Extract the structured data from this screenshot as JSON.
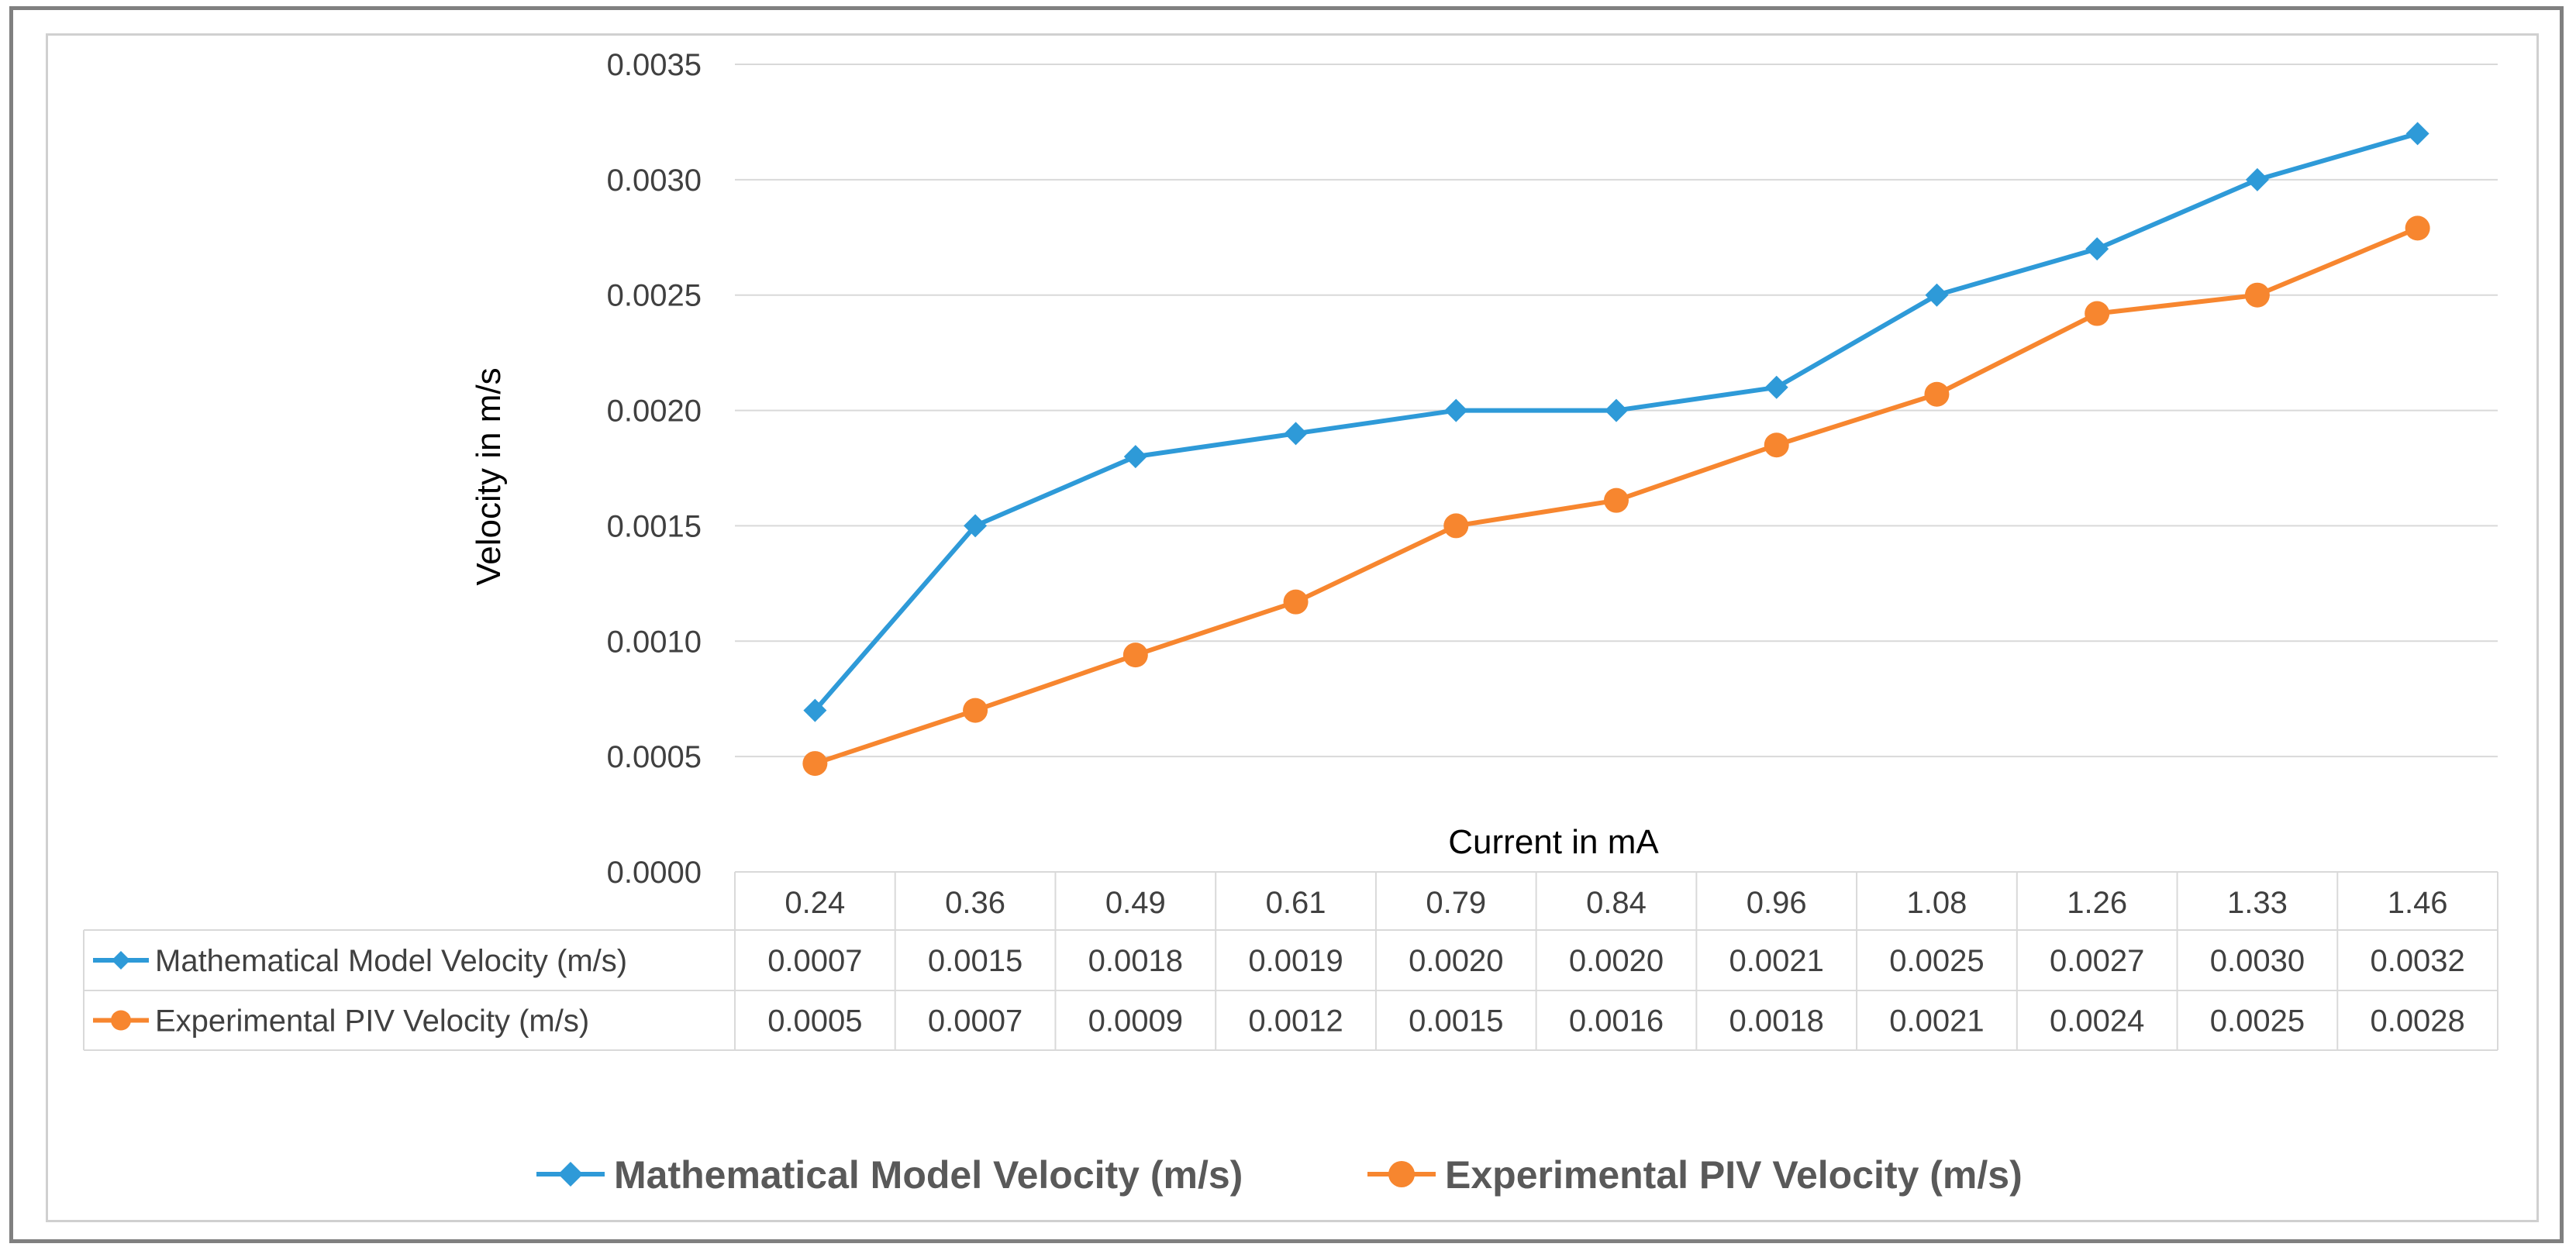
{
  "chart_data": {
    "type": "line",
    "ylabel": "Velocity in m/s",
    "xlabel": "Current in mA",
    "ylim": [
      0,
      0.0035
    ],
    "y_ticks": [
      "0.0000",
      "0.0005",
      "0.0010",
      "0.0015",
      "0.0020",
      "0.0025",
      "0.0030",
      "0.0035"
    ],
    "grid": "horizontal",
    "legend_position": "bottom",
    "data_table": true,
    "categories": [
      "0.24",
      "0.36",
      "0.49",
      "0.61",
      "0.79",
      "0.84",
      "0.96",
      "1.08",
      "1.26",
      "1.33",
      "1.46"
    ],
    "series": [
      {
        "name": "Mathematical Model Velocity (m/s)",
        "color": "#2e9ad8",
        "marker": "diamond",
        "values": [
          0.0007,
          0.0015,
          0.0018,
          0.0019,
          0.002,
          0.002,
          0.0021,
          0.0025,
          0.0027,
          0.003,
          0.0032
        ],
        "table_values": [
          "0.0007",
          "0.0015",
          "0.0018",
          "0.0019",
          "0.0020",
          "0.0020",
          "0.0021",
          "0.0025",
          "0.0027",
          "0.0030",
          "0.0032"
        ]
      },
      {
        "name": "Experimental PIV Velocity (m/s)",
        "color": "#f7862f",
        "marker": "circle",
        "values": [
          0.00047,
          0.0007,
          0.00094,
          0.00117,
          0.0015,
          0.00161,
          0.00185,
          0.00207,
          0.00242,
          0.0025,
          0.00279
        ],
        "table_values": [
          "0.0005",
          "0.0007",
          "0.0009",
          "0.0012",
          "0.0015",
          "0.0016",
          "0.0018",
          "0.0021",
          "0.0024",
          "0.0025",
          "0.0028"
        ]
      }
    ]
  }
}
